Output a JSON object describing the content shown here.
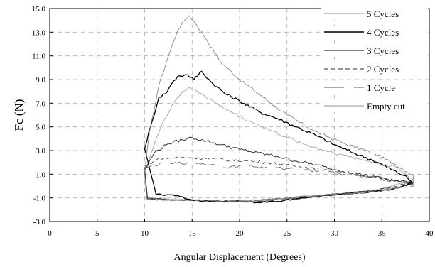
{
  "chart_data": {
    "type": "line",
    "xlabel": "Angular Displacement (Degrees)",
    "ylabel": "Fc (N)",
    "xlim": [
      0,
      40
    ],
    "ylim": [
      -3.0,
      15.0
    ],
    "x_ticks": [
      "0",
      "5",
      "10",
      "15",
      "20",
      "25",
      "30",
      "35",
      "40"
    ],
    "y_ticks": [
      "-3.0",
      "-1.0",
      "1.0",
      "3.0",
      "5.0",
      "7.0",
      "9.0",
      "11.0",
      "13.0",
      "15.0"
    ],
    "grid": true,
    "legend_position": "top-right",
    "series": [
      {
        "name": "5 Cycles",
        "color": "#888888",
        "dash": "solid",
        "width": 0.9,
        "upper": [
          [
            10,
            1.2
          ],
          [
            10.5,
            4.5
          ],
          [
            11.5,
            8.5
          ],
          [
            12.5,
            11.0
          ],
          [
            13.5,
            13.2
          ],
          [
            14.2,
            14.0
          ],
          [
            14.7,
            14.4
          ],
          [
            15.5,
            13.6
          ],
          [
            16.5,
            12.4
          ],
          [
            18,
            10.5
          ],
          [
            20,
            9.0
          ],
          [
            22,
            7.8
          ],
          [
            25,
            6.0
          ],
          [
            28,
            4.6
          ],
          [
            31,
            3.6
          ],
          [
            34,
            2.8
          ],
          [
            36.5,
            1.8
          ],
          [
            38.3,
            0.9
          ]
        ],
        "lower": [
          [
            10,
            1.0
          ],
          [
            10.2,
            -1.1
          ],
          [
            12,
            -1.2
          ],
          [
            15,
            -1.2
          ],
          [
            18,
            -1.3
          ],
          [
            21,
            -1.3
          ],
          [
            24,
            -1.1
          ],
          [
            27,
            -0.9
          ],
          [
            30,
            -0.7
          ],
          [
            33,
            -0.5
          ],
          [
            36,
            -0.2
          ],
          [
            38.3,
            0.0
          ]
        ]
      },
      {
        "name": "4 Cycles",
        "color": "#000000",
        "dash": "solid",
        "width": 1.3,
        "upper": [
          [
            10,
            3.2
          ],
          [
            10.8,
            5.5
          ],
          [
            11.5,
            7.5
          ],
          [
            12.2,
            7.8
          ],
          [
            12.8,
            8.6
          ],
          [
            13.5,
            9.3
          ],
          [
            14.5,
            9.4
          ],
          [
            15.2,
            9.0
          ],
          [
            16.0,
            9.7
          ],
          [
            17,
            8.8
          ],
          [
            18.5,
            7.8
          ],
          [
            20,
            7.2
          ],
          [
            22,
            6.3
          ],
          [
            24,
            5.7
          ],
          [
            26,
            5.0
          ],
          [
            28,
            4.3
          ],
          [
            30,
            3.5
          ],
          [
            32,
            2.8
          ],
          [
            34,
            2.2
          ],
          [
            36,
            1.4
          ],
          [
            37.3,
            0.9
          ],
          [
            38.3,
            0.3
          ]
        ],
        "lower": [
          [
            10,
            3.2
          ],
          [
            11.2,
            -0.7
          ],
          [
            13.5,
            -0.8
          ],
          [
            14.5,
            -1.1
          ],
          [
            16,
            -1.3
          ],
          [
            18,
            -1.3
          ],
          [
            20,
            -1.3
          ],
          [
            22,
            -1.4
          ],
          [
            24,
            -1.3
          ],
          [
            27,
            -1.0
          ],
          [
            30,
            -0.7
          ],
          [
            33,
            -0.5
          ],
          [
            36,
            -0.3
          ],
          [
            38.3,
            0.3
          ]
        ]
      },
      {
        "name": "3 Cycles",
        "color": "#333333",
        "dash": "solid",
        "width": 1.0,
        "upper": [
          [
            10,
            1.3
          ],
          [
            11,
            2.8
          ],
          [
            12.5,
            3.6
          ],
          [
            14,
            3.9
          ],
          [
            15,
            4.1
          ],
          [
            16.5,
            3.8
          ],
          [
            18,
            3.5
          ],
          [
            20,
            3.1
          ],
          [
            22,
            2.8
          ],
          [
            24,
            2.5
          ],
          [
            26,
            2.1
          ],
          [
            28,
            1.8
          ],
          [
            30,
            1.4
          ],
          [
            32,
            1.1
          ],
          [
            34,
            0.8
          ],
          [
            36,
            0.5
          ],
          [
            38.3,
            0.2
          ]
        ],
        "lower": [
          [
            10,
            1.3
          ],
          [
            10.3,
            -1.0
          ],
          [
            13,
            -1.2
          ],
          [
            16,
            -1.2
          ],
          [
            19,
            -1.3
          ],
          [
            22,
            -1.3
          ],
          [
            25,
            -1.1
          ],
          [
            28,
            -0.9
          ],
          [
            31,
            -0.7
          ],
          [
            34,
            -0.5
          ],
          [
            36,
            -0.3
          ],
          [
            38.3,
            0.2
          ]
        ]
      },
      {
        "name": "2 Cycles",
        "color": "#555555",
        "dash": "6,4",
        "width": 1.0,
        "upper": [
          [
            10,
            1.5
          ],
          [
            11,
            2.2
          ],
          [
            13,
            2.4
          ],
          [
            15,
            2.4
          ],
          [
            17,
            2.3
          ],
          [
            19,
            2.2
          ],
          [
            21,
            2.1
          ],
          [
            23,
            2.0
          ],
          [
            25,
            1.8
          ],
          [
            27,
            1.6
          ],
          [
            29,
            1.4
          ],
          [
            31,
            1.2
          ],
          [
            33,
            0.9
          ],
          [
            35,
            0.7
          ],
          [
            38.3,
            0.3
          ]
        ],
        "lower": [
          [
            10,
            1.5
          ],
          [
            10.3,
            -1.1
          ],
          [
            13,
            -1.2
          ],
          [
            16,
            -1.2
          ],
          [
            19,
            -1.3
          ],
          [
            22,
            -1.2
          ],
          [
            25,
            -1.0
          ],
          [
            28,
            -0.8
          ],
          [
            31,
            -0.6
          ],
          [
            34,
            -0.4
          ],
          [
            38.3,
            0.3
          ]
        ]
      },
      {
        "name": "1 Cycle",
        "color": "#777777",
        "dash": "28,14",
        "width": 1.0,
        "upper": [
          [
            10,
            1.4
          ],
          [
            11,
            1.8
          ],
          [
            13,
            1.9
          ],
          [
            15,
            2.0
          ],
          [
            17,
            1.8
          ],
          [
            19,
            1.6
          ],
          [
            21,
            1.7
          ],
          [
            23,
            1.5
          ],
          [
            25,
            1.5
          ],
          [
            27,
            1.4
          ],
          [
            29,
            1.2
          ],
          [
            31,
            1.0
          ],
          [
            33,
            0.8
          ],
          [
            35,
            0.6
          ],
          [
            38.3,
            0.2
          ]
        ],
        "lower": [
          [
            10,
            1.4
          ],
          [
            10.3,
            -1.1
          ],
          [
            13,
            -1.2
          ],
          [
            16,
            -1.2
          ],
          [
            19,
            -1.2
          ],
          [
            22,
            -1.2
          ],
          [
            25,
            -1.0
          ],
          [
            28,
            -0.8
          ],
          [
            31,
            -0.6
          ],
          [
            34,
            -0.4
          ],
          [
            38.3,
            0.2
          ]
        ]
      },
      {
        "name": "Empty cut",
        "color": "#aaaaaa",
        "dash": "solid",
        "width": 1.0,
        "upper": [
          [
            10,
            1.2
          ],
          [
            11,
            3.5
          ],
          [
            12,
            5.5
          ],
          [
            13,
            7.0
          ],
          [
            14,
            8.0
          ],
          [
            14.8,
            8.3
          ],
          [
            16,
            7.8
          ],
          [
            17.5,
            7.0
          ],
          [
            19,
            6.3
          ],
          [
            21,
            5.5
          ],
          [
            23,
            4.8
          ],
          [
            25,
            4.1
          ],
          [
            27,
            3.5
          ],
          [
            29,
            3.0
          ],
          [
            31,
            2.6
          ],
          [
            33,
            2.2
          ],
          [
            35,
            1.9
          ],
          [
            36.5,
            1.6
          ],
          [
            38.3,
            0.5
          ]
        ],
        "lower": [
          [
            10,
            1.2
          ],
          [
            10.3,
            -1.0
          ],
          [
            13,
            -1.1
          ],
          [
            16,
            -1.2
          ],
          [
            19,
            -1.2
          ],
          [
            22,
            -1.2
          ],
          [
            25,
            -1.0
          ],
          [
            28,
            -0.8
          ],
          [
            31,
            -0.6
          ],
          [
            34,
            -0.4
          ],
          [
            38.3,
            0.5
          ]
        ]
      }
    ]
  }
}
